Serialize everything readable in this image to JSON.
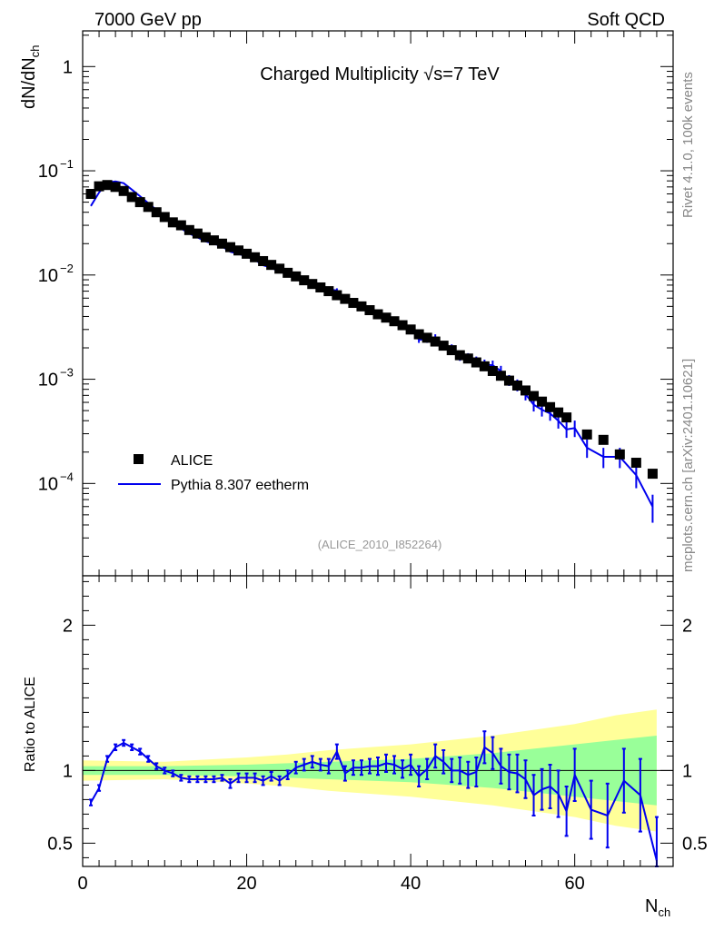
{
  "header": {
    "left": "7000 GeV pp",
    "right": "Soft QCD"
  },
  "side": {
    "rivet": "Rivet 4.1.0,  100k events",
    "mcplots": "mcplots.cern.ch [arXiv:2401.10621]"
  },
  "chart_data": [
    {
      "type": "scatter",
      "title": "Charged Multiplicity √s=7 TeV",
      "analysis_id": "(ALICE_2010_I852264)",
      "ylabel": "dN/dN_ch",
      "xlabel": "N_ch",
      "xlim": [
        0,
        72
      ],
      "ylim": [
        1.3e-05,
        2.2
      ],
      "yscale": "log",
      "y_ticks": [
        {
          "value": 1,
          "label": "1"
        },
        {
          "value": 0.1,
          "label": "10",
          "exp": "−1"
        },
        {
          "value": 0.01,
          "label": "10",
          "exp": "−2"
        },
        {
          "value": 0.001,
          "label": "10",
          "exp": "−3"
        },
        {
          "value": 0.0001,
          "label": "10",
          "exp": "−4"
        }
      ],
      "legend": [
        {
          "label": "ALICE",
          "color": "#000000",
          "kind": "square"
        },
        {
          "label": "Pythia 8.307 eetherm",
          "color": "#0000ee",
          "kind": "line"
        }
      ],
      "series": [
        {
          "name": "ALICE",
          "x": [
            1,
            2,
            3,
            4,
            5,
            6,
            7,
            8,
            9,
            10,
            11,
            12,
            13,
            14,
            15,
            16,
            17,
            18,
            19,
            20,
            21,
            22,
            23,
            24,
            25,
            26,
            27,
            28,
            29,
            30,
            31,
            32,
            33,
            34,
            35,
            36,
            37,
            38,
            39,
            40,
            41,
            42,
            43,
            44,
            45,
            46,
            47,
            48,
            49,
            50,
            51,
            52,
            53,
            54,
            55,
            56,
            57,
            58,
            59,
            61.5,
            63.5,
            65.5,
            67.5,
            69.5
          ],
          "values": [
            0.06,
            0.071,
            0.073,
            0.07,
            0.064,
            0.056,
            0.05,
            0.045,
            0.04,
            0.036,
            0.032,
            0.03,
            0.027,
            0.025,
            0.023,
            0.0215,
            0.02,
            0.0185,
            0.0172,
            0.016,
            0.0148,
            0.0136,
            0.0125,
            0.0115,
            0.0105,
            0.0097,
            0.0089,
            0.0082,
            0.0076,
            0.007,
            0.0064,
            0.0059,
            0.0054,
            0.005,
            0.0046,
            0.0042,
            0.0039,
            0.0036,
            0.0033,
            0.003,
            0.0027,
            0.0025,
            0.0023,
            0.0021,
            0.0019,
            0.0017,
            0.00158,
            0.00145,
            0.00133,
            0.0012,
            0.00108,
            0.00097,
            0.00087,
            0.00078,
            0.00069,
            0.00061,
            0.00054,
            0.00048,
            0.00043,
            0.000295,
            0.000262,
            0.00019,
            0.000158,
            0.000124
          ]
        },
        {
          "name": "Pythia 8.307 eetherm",
          "x": [
            1,
            2,
            3,
            4,
            5,
            6,
            7,
            8,
            9,
            10,
            11,
            12,
            13,
            14,
            15,
            16,
            17,
            18,
            19,
            20,
            21,
            22,
            23,
            24,
            25,
            26,
            27,
            28,
            29,
            30,
            31,
            32,
            33,
            34,
            35,
            36,
            37,
            38,
            39,
            40,
            41,
            42,
            43,
            44,
            45,
            46,
            47,
            48,
            49,
            50,
            51,
            52,
            53,
            54,
            55,
            56,
            57,
            58,
            59,
            60,
            61.5,
            63.5,
            65.5,
            67.5,
            69.5
          ],
          "values": [
            0.046,
            0.062,
            0.077,
            0.079,
            0.076,
            0.066,
            0.057,
            0.049,
            0.042,
            0.036,
            0.031,
            0.028,
            0.025,
            0.023,
            0.021,
            0.02,
            0.0188,
            0.0167,
            0.016,
            0.015,
            0.014,
            0.0124,
            0.0118,
            0.0107,
            0.0103,
            0.0098,
            0.0091,
            0.0087,
            0.0081,
            0.0073,
            0.0071,
            0.0058,
            0.0056,
            0.0051,
            0.0047,
            0.0043,
            0.004,
            0.0036,
            0.0032,
            0.0031,
            0.0024,
            0.0024,
            0.0025,
            0.0021,
            0.002,
            0.00165,
            0.00163,
            0.0015,
            0.00139,
            0.00136,
            0.0012,
            0.00098,
            0.00088,
            0.00072,
            0.00057,
            0.00051,
            0.00047,
            0.0004,
            0.00033,
            0.00034,
            0.00022,
            0.00018,
            0.00018,
            0.00012,
            6e-05
          ]
        }
      ]
    },
    {
      "type": "line",
      "ylabel": "Ratio to ALICE",
      "xlabel": "N_ch",
      "xlim": [
        0,
        72
      ],
      "ylim": [
        0.34,
        2.34
      ],
      "x_ticks": [
        0,
        20,
        40,
        60
      ],
      "y_ticks": [
        0.5,
        1,
        2
      ],
      "band_stat_x": [
        0,
        10,
        20,
        25,
        30,
        35,
        40,
        45,
        50,
        55,
        60,
        65,
        70
      ],
      "band_stat_half_width": [
        0.03,
        0.03,
        0.04,
        0.05,
        0.06,
        0.07,
        0.08,
        0.1,
        0.12,
        0.15,
        0.18,
        0.21,
        0.24
      ],
      "band_tot_half_width": [
        0.07,
        0.06,
        0.09,
        0.11,
        0.14,
        0.16,
        0.18,
        0.21,
        0.24,
        0.28,
        0.32,
        0.38,
        0.42
      ],
      "series": [
        {
          "name": "Pythia 8.307 eetherm / ALICE",
          "x": [
            1,
            2,
            3,
            4,
            5,
            6,
            7,
            8,
            9,
            10,
            11,
            12,
            13,
            14,
            15,
            16,
            17,
            18,
            19,
            20,
            21,
            22,
            23,
            24,
            25,
            26,
            27,
            28,
            29,
            30,
            31,
            32,
            33,
            34,
            35,
            36,
            37,
            38,
            39,
            40,
            41,
            42,
            43,
            44,
            45,
            46,
            47,
            48,
            49,
            50,
            51,
            52,
            53,
            54,
            55,
            56,
            57,
            58,
            59,
            60,
            62,
            64,
            66,
            68,
            70
          ],
          "values": [
            0.78,
            0.88,
            1.08,
            1.16,
            1.19,
            1.16,
            1.13,
            1.08,
            1.03,
            1.0,
            0.98,
            0.95,
            0.94,
            0.94,
            0.94,
            0.94,
            0.95,
            0.91,
            0.95,
            0.95,
            0.95,
            0.93,
            0.96,
            0.93,
            0.97,
            1.02,
            1.04,
            1.06,
            1.04,
            1.03,
            1.13,
            0.98,
            1.02,
            1.02,
            1.03,
            1.03,
            1.05,
            1.04,
            1.01,
            1.04,
            0.96,
            1.01,
            1.1,
            1.06,
            1.0,
            1.0,
            0.97,
            0.99,
            1.16,
            1.12,
            1.03,
            0.99,
            0.98,
            0.94,
            0.83,
            0.87,
            0.89,
            0.84,
            0.72,
            0.97,
            0.73,
            0.69,
            0.93,
            0.83,
            0.38
          ],
          "errors": [
            0.02,
            0.02,
            0.02,
            0.02,
            0.02,
            0.02,
            0.02,
            0.02,
            0.02,
            0.02,
            0.02,
            0.02,
            0.02,
            0.02,
            0.02,
            0.02,
            0.02,
            0.03,
            0.03,
            0.03,
            0.03,
            0.03,
            0.03,
            0.03,
            0.03,
            0.04,
            0.04,
            0.04,
            0.04,
            0.05,
            0.05,
            0.05,
            0.05,
            0.05,
            0.05,
            0.06,
            0.06,
            0.06,
            0.06,
            0.07,
            0.07,
            0.07,
            0.08,
            0.08,
            0.08,
            0.09,
            0.09,
            0.1,
            0.11,
            0.11,
            0.12,
            0.12,
            0.13,
            0.13,
            0.14,
            0.14,
            0.15,
            0.16,
            0.17,
            0.18,
            0.2,
            0.22,
            0.22,
            0.25,
            0.3
          ]
        }
      ]
    }
  ]
}
